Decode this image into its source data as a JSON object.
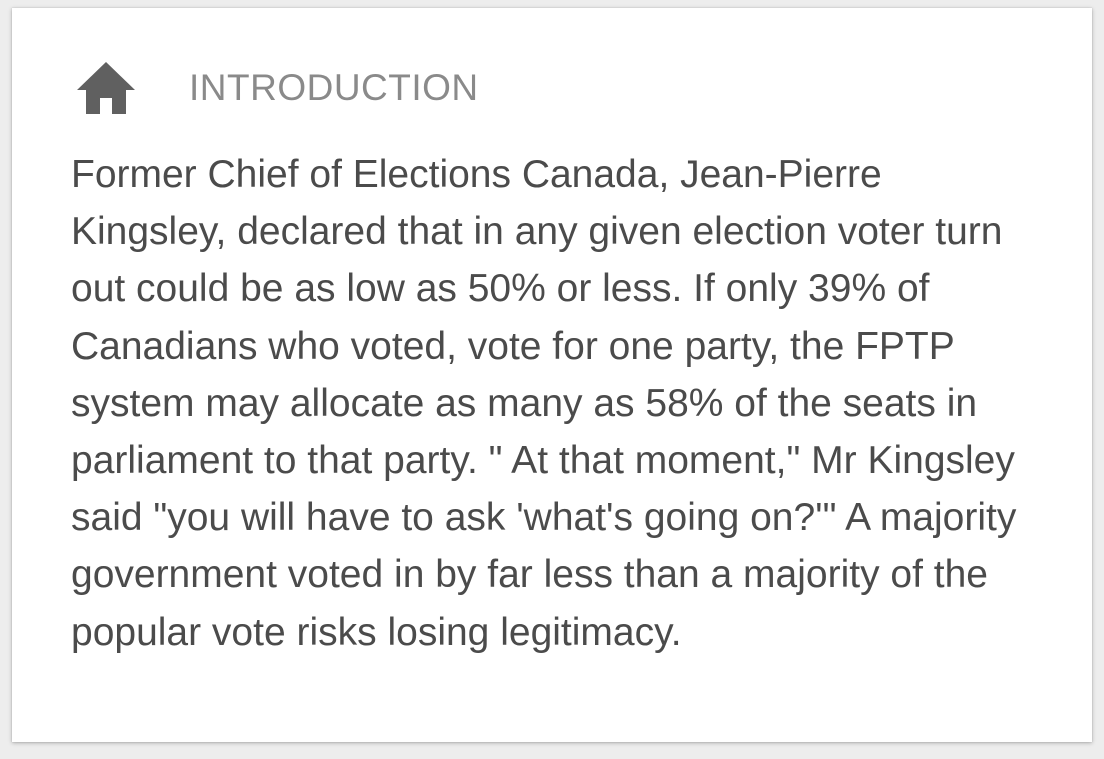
{
  "section": {
    "icon": "home-icon",
    "title": "INTRODUCTION"
  },
  "content": {
    "paragraph": "Former Chief of Elections Canada, Jean-Pierre Kingsley, declared that in any given election voter turn out could be as low as 50% or less. If only 39% of Canadians who voted, vote for one party, the FPTP system may allocate as many as 58% of the seats in parliament to that party. \" At that moment,\" Mr Kingsley said \"you will have to ask 'what's going on?'\" A majority government voted in by far less than a majority of the popular vote risks losing legitimacy."
  },
  "colors": {
    "icon": "#606060",
    "title": "#8a8a8a",
    "text": "#4b4b4b",
    "card": "#ffffff",
    "page": "#ededed"
  }
}
